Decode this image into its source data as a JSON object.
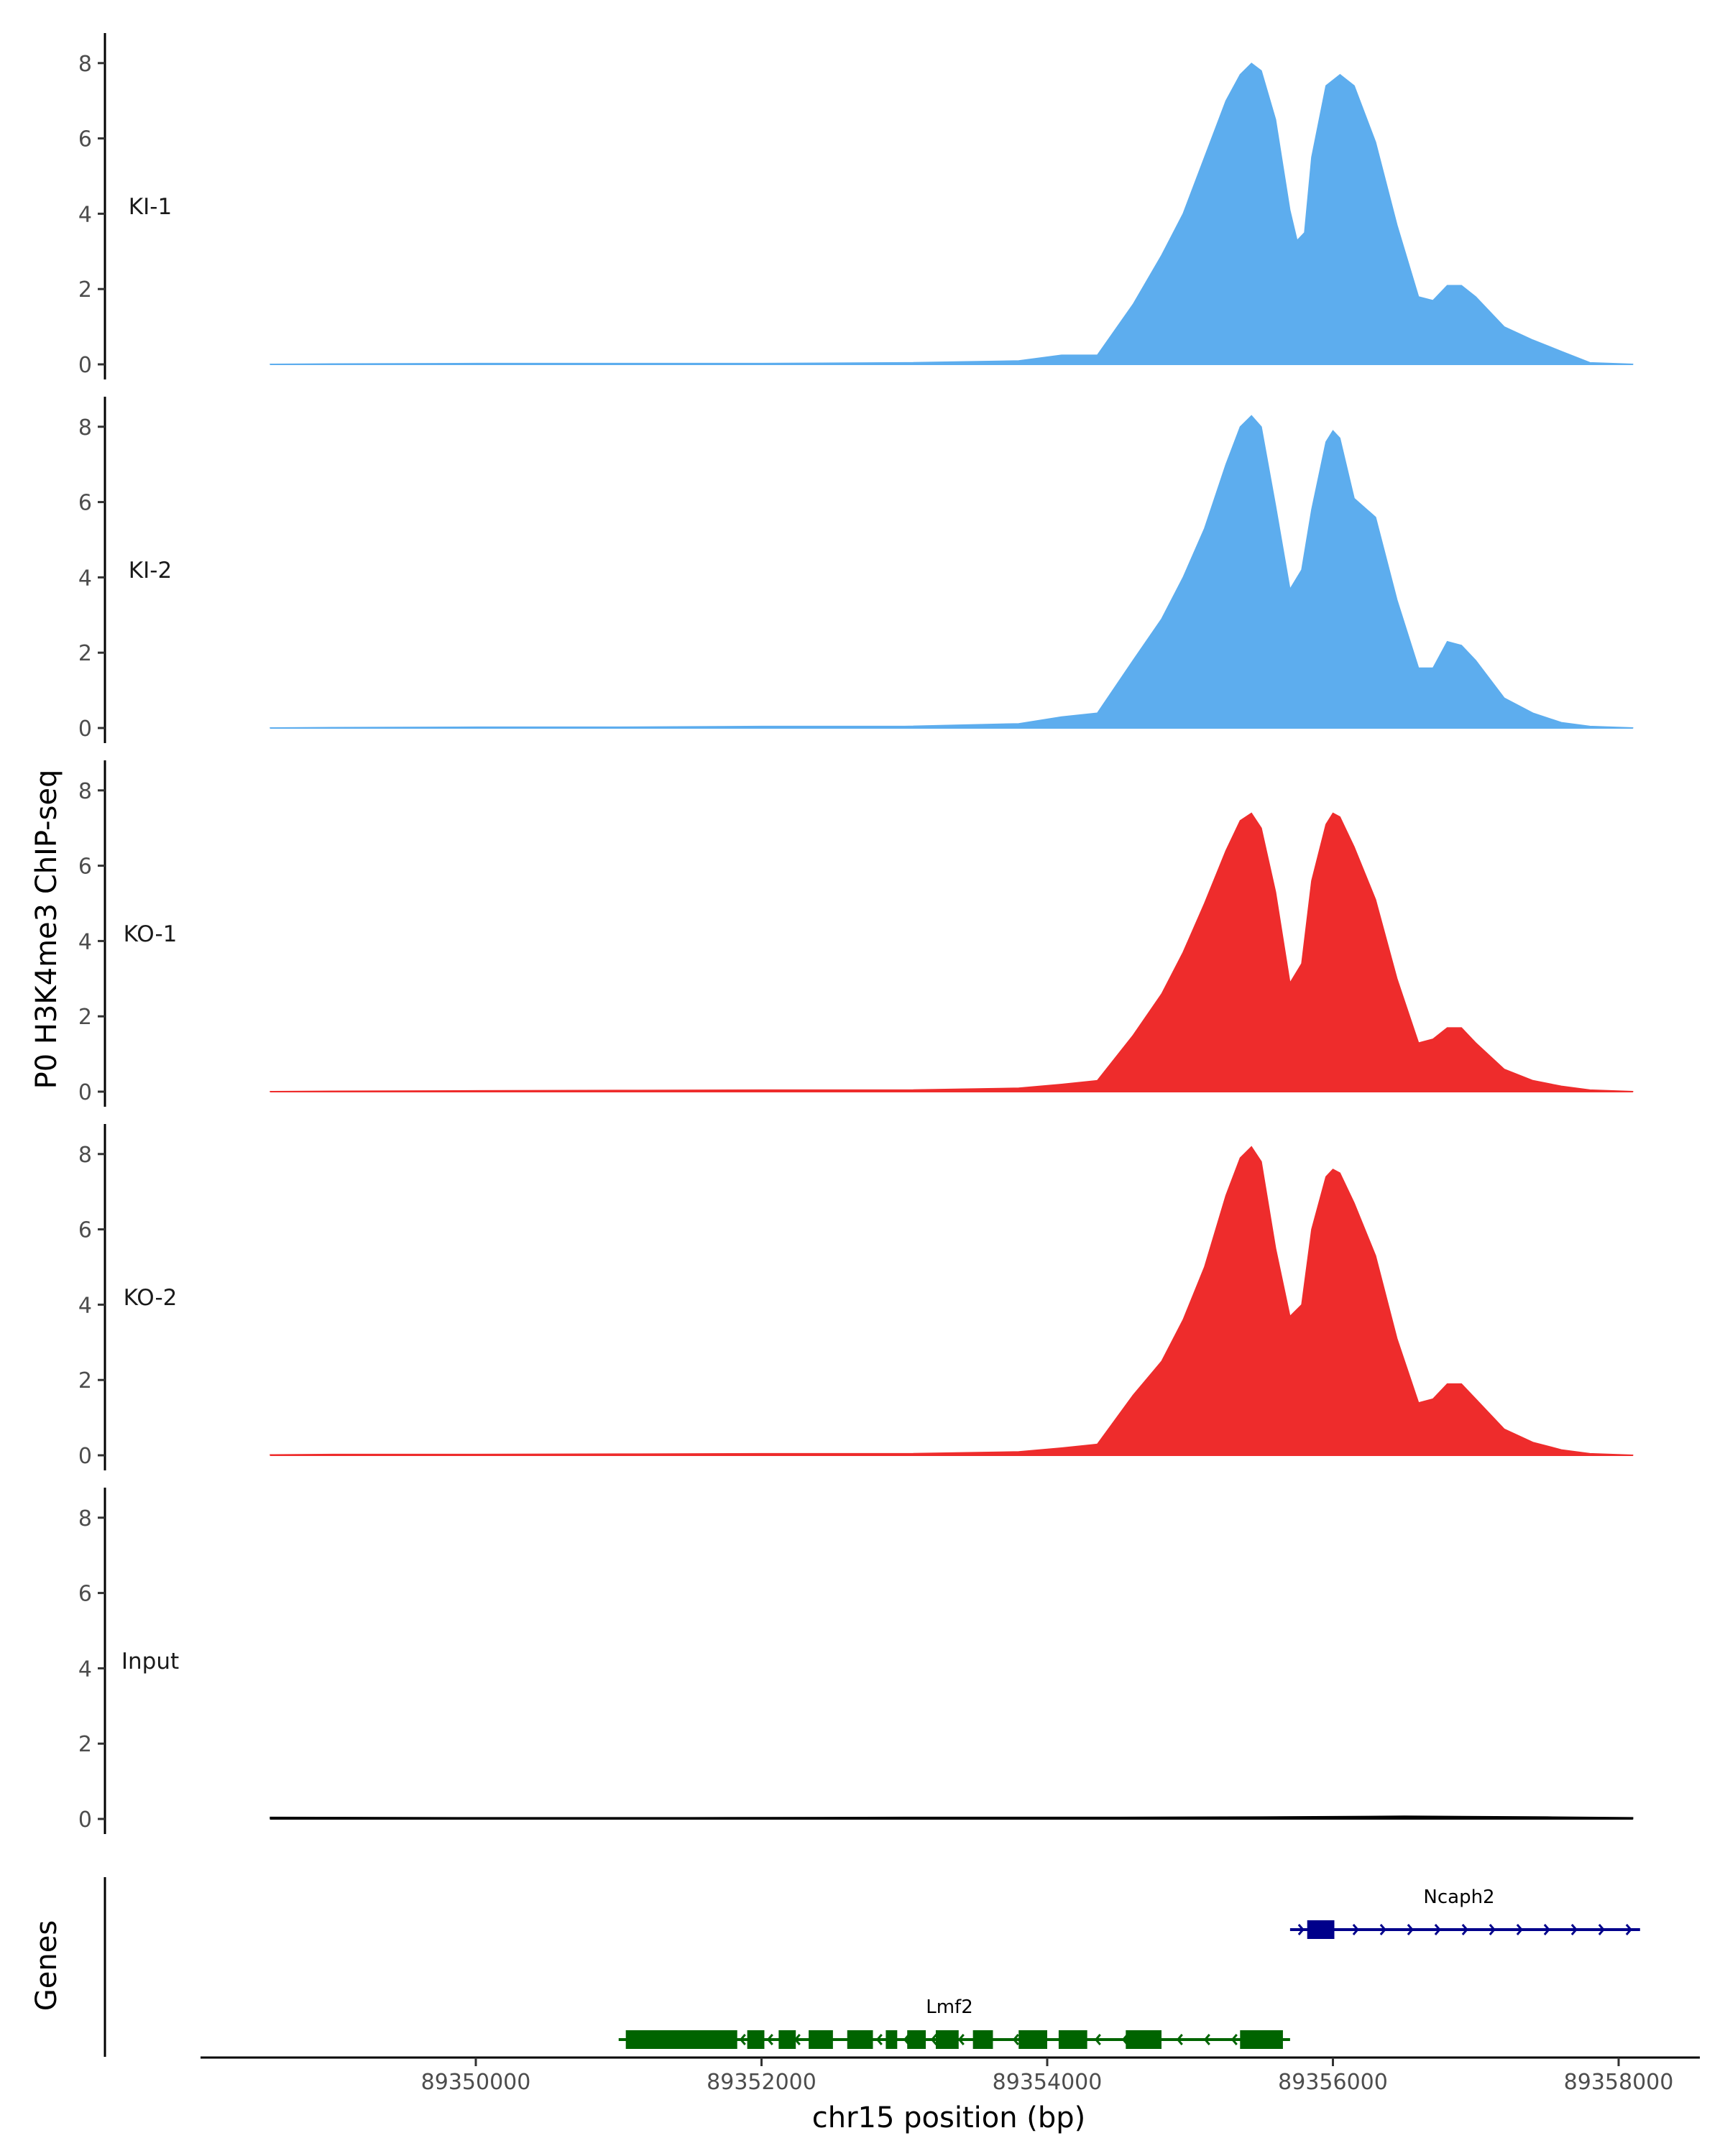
{
  "chart_data": {
    "type": "area",
    "ylabel": "P0 H3K4me3 ChIP-seq",
    "xlabel": "chr15 position (bp)",
    "genes_label": "Genes",
    "x_ticks": [
      89350000,
      89352000,
      89354000,
      89356000,
      89358000
    ],
    "x_tick_labels": [
      "89350000",
      "89352000",
      "89354000",
      "89356000",
      "89358000"
    ],
    "xlim": [
      89348000,
      89358250
    ],
    "ylim": [
      0,
      8.7
    ],
    "y_ticks": [
      0,
      2,
      4,
      6,
      8
    ],
    "y_tick_labels": [
      "0",
      "2",
      "4",
      "6",
      "8"
    ],
    "tracks": [
      {
        "name": "KI-1",
        "color": "#5DADEE",
        "x": [
          89348560,
          89349000,
          89350000,
          89351000,
          89352000,
          89353000,
          89353800,
          89354100,
          89354350,
          89354600,
          89354800,
          89354950,
          89355100,
          89355250,
          89355350,
          89355430,
          89355500,
          89355600,
          89355700,
          89355750,
          89355800,
          89355850,
          89355950,
          89356050,
          89356150,
          89356300,
          89356450,
          89356600,
          89356700,
          89356800,
          89356900,
          89357000,
          89357200,
          89357400,
          89357600,
          89357800,
          89358100
        ],
        "y": [
          0.01,
          0.02,
          0.03,
          0.03,
          0.03,
          0.05,
          0.1,
          0.25,
          0.25,
          1.6,
          2.9,
          4.0,
          5.5,
          7.0,
          7.7,
          8.0,
          7.8,
          6.5,
          4.1,
          3.3,
          3.5,
          5.5,
          7.4,
          7.7,
          7.4,
          5.9,
          3.7,
          1.8,
          1.7,
          2.1,
          2.1,
          1.8,
          1.0,
          0.65,
          0.35,
          0.05,
          0.01
        ]
      },
      {
        "name": "KI-2",
        "color": "#5DADEE",
        "x": [
          89348560,
          89349000,
          89350000,
          89351000,
          89352000,
          89353000,
          89353800,
          89354100,
          89354350,
          89354600,
          89354800,
          89354950,
          89355100,
          89355250,
          89355350,
          89355430,
          89355500,
          89355600,
          89355700,
          89355780,
          89355850,
          89355950,
          89356000,
          89356050,
          89356150,
          89356300,
          89356450,
          89356600,
          89356700,
          89356800,
          89356900,
          89357000,
          89357200,
          89357400,
          89357600,
          89357800,
          89358100
        ],
        "y": [
          0.01,
          0.02,
          0.03,
          0.03,
          0.05,
          0.05,
          0.12,
          0.3,
          0.4,
          1.8,
          2.9,
          4.0,
          5.3,
          7.0,
          8.0,
          8.3,
          8.0,
          5.9,
          3.7,
          4.2,
          5.8,
          7.6,
          7.9,
          7.7,
          6.1,
          5.6,
          3.4,
          1.6,
          1.6,
          2.3,
          2.2,
          1.8,
          0.8,
          0.4,
          0.15,
          0.05,
          0.01
        ]
      },
      {
        "name": "KO-1",
        "color": "#EE2C2C",
        "x": [
          89348560,
          89349000,
          89350000,
          89351000,
          89352000,
          89353000,
          89353800,
          89354100,
          89354350,
          89354600,
          89354800,
          89354950,
          89355100,
          89355250,
          89355350,
          89355430,
          89355500,
          89355600,
          89355700,
          89355780,
          89355850,
          89355950,
          89356000,
          89356050,
          89356150,
          89356300,
          89356450,
          89356600,
          89356700,
          89356800,
          89356900,
          89357000,
          89357200,
          89357400,
          89357600,
          89357800,
          89358100
        ],
        "y": [
          0.01,
          0.02,
          0.03,
          0.04,
          0.05,
          0.05,
          0.1,
          0.2,
          0.3,
          1.5,
          2.6,
          3.7,
          5.0,
          6.4,
          7.2,
          7.4,
          7.0,
          5.3,
          2.9,
          3.4,
          5.6,
          7.1,
          7.4,
          7.3,
          6.5,
          5.1,
          3.0,
          1.3,
          1.4,
          1.7,
          1.7,
          1.3,
          0.6,
          0.3,
          0.15,
          0.05,
          0.01
        ]
      },
      {
        "name": "KO-2",
        "color": "#EE2C2C",
        "x": [
          89348560,
          89349000,
          89350000,
          89351000,
          89352000,
          89353000,
          89353800,
          89354100,
          89354350,
          89354600,
          89354800,
          89354950,
          89355100,
          89355250,
          89355350,
          89355430,
          89355500,
          89355600,
          89355700,
          89355780,
          89355850,
          89355950,
          89356000,
          89356050,
          89356150,
          89356300,
          89356450,
          89356600,
          89356700,
          89356800,
          89356900,
          89357000,
          89357200,
          89357400,
          89357600,
          89357800,
          89358100
        ],
        "y": [
          0.02,
          0.03,
          0.03,
          0.04,
          0.05,
          0.05,
          0.1,
          0.2,
          0.3,
          1.6,
          2.5,
          3.6,
          5.0,
          6.9,
          7.9,
          8.2,
          7.8,
          5.5,
          3.7,
          4.0,
          6.0,
          7.4,
          7.6,
          7.5,
          6.7,
          5.3,
          3.1,
          1.4,
          1.5,
          1.9,
          1.9,
          1.5,
          0.7,
          0.35,
          0.15,
          0.05,
          0.01
        ]
      },
      {
        "name": "Input",
        "color": "#000000",
        "x": [
          89348560,
          89350000,
          89351500,
          89353000,
          89354500,
          89355500,
          89356500,
          89357500,
          89358100
        ],
        "y": [
          0.05,
          0.04,
          0.04,
          0.05,
          0.05,
          0.06,
          0.08,
          0.06,
          0.04
        ]
      }
    ],
    "genes": [
      {
        "name": "Lmf2",
        "strand": "-",
        "color": "#006400",
        "start": 89351000,
        "end": 89355700,
        "exons": [
          [
            89351050,
            89351830
          ],
          [
            89351900,
            89352020
          ],
          [
            89352120,
            89352240
          ],
          [
            89352330,
            89352500
          ],
          [
            89352600,
            89352780
          ],
          [
            89352870,
            89352950
          ],
          [
            89353020,
            89353150
          ],
          [
            89353220,
            89353380
          ],
          [
            89353480,
            89353620
          ],
          [
            89353800,
            89354000
          ],
          [
            89354080,
            89354280
          ],
          [
            89354550,
            89354800
          ],
          [
            89355350,
            89355650
          ]
        ]
      },
      {
        "name": "Ncaph2",
        "strand": "+",
        "color": "#00008B",
        "start": 89355700,
        "end": 89358150,
        "exons": [
          [
            89355820,
            89356010
          ]
        ]
      }
    ]
  }
}
